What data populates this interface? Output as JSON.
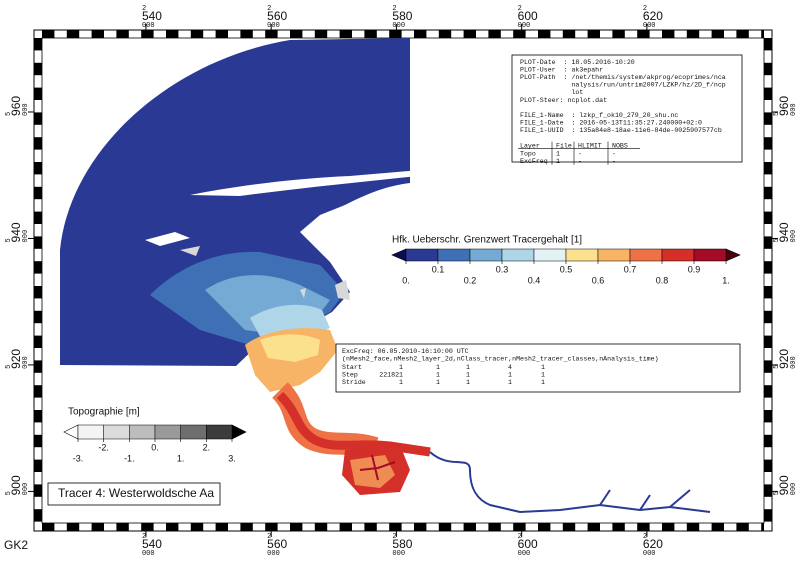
{
  "map": {
    "crs_label": "GK2",
    "x_axis": {
      "prefix": "2",
      "suffix": "000",
      "lim": [
        523.4,
        638.7
      ],
      "ticks": [
        540,
        560,
        580,
        600,
        620
      ]
    },
    "y_axis": {
      "prefix": "5",
      "suffix": "000",
      "lim": [
        895.0,
        971.7
      ],
      "ticks": [
        900,
        920,
        940,
        960
      ]
    }
  },
  "info_box": {
    "blocks": [
      [
        "PLOT-Date  : 18.05.2016-10:20",
        "PLOT-User  : ak3epahr",
        "PLOT-Path  : /net/themis/system/akprog/ecoprimes/nca",
        "             nalysis/run/untrim2007/LZKP/hz/2D_f/ncp",
        "             lot",
        "PLOT-Steer: ncplot.dat"
      ],
      [
        "FILE_1-Name  : lzkp_f_ok10_279_20_shu.nc",
        "FILE_1-Date  : 2016-05-13T11:35:27.240000+02:0",
        "FILE_1-UUID  : 135a84e8-18ae-11e6-84de-0025907577cb"
      ]
    ],
    "table": {
      "header": [
        "Layer",
        "File",
        "HLIMIT",
        "NOBS"
      ],
      "rows": [
        [
          "Topo",
          "1",
          "-",
          "-"
        ],
        [
          "ExcFreq",
          "1",
          "-",
          "-"
        ]
      ]
    }
  },
  "tracer_legend": {
    "title": "Hfk. Ueberschr. Grenzwert Tracergehalt [1]",
    "lim": [
      0,
      1
    ],
    "ticks": [
      {
        "value": 0,
        "label": "0."
      },
      0.1,
      0.2,
      0.3,
      0.4,
      0.5,
      0.6,
      0.7,
      0.8,
      0.9,
      {
        "value": 1,
        "label": "1."
      }
    ],
    "under_color": "#0c0c52",
    "over_color": "#4a0010",
    "colors": [
      "#2a3a94",
      "#3f70b6",
      "#74aad3",
      "#aed5e8",
      "#e3f2f4",
      "#fbe08e",
      "#f8b466",
      "#ee7245",
      "#d52f2a",
      "#a30b27"
    ]
  },
  "exceedance_box": {
    "lines": [
      "ExcFreq: 06.05.2010-16:10:00 UTC",
      "(nMesh2_face,nMesh2_layer_2d,nClass_tracer,nMesh2_tracer_classes,nAnalysis_time)"
    ],
    "rows": [
      [
        "Start",
        1,
        1,
        1,
        4,
        1
      ],
      [
        "Step",
        221821,
        1,
        1,
        1,
        1
      ],
      [
        "Stride",
        1,
        1,
        1,
        1,
        1
      ]
    ]
  },
  "topo_legend": {
    "title": "Topographie [m]",
    "lim": [
      -3,
      3
    ],
    "ticks": [
      {
        "value": -3,
        "label": "-3."
      },
      {
        "value": -2,
        "label": "-2."
      },
      {
        "value": -1,
        "label": "-1."
      },
      {
        "value": 0,
        "label": "0."
      },
      {
        "value": 1,
        "label": "1."
      },
      {
        "value": 2,
        "label": "2."
      },
      {
        "value": 3,
        "label": "3."
      }
    ],
    "under_color": "#ffffff",
    "over_color": "#000000",
    "colors": [
      "#f4f4f4",
      "#dcdcdc",
      "#bdbdbd",
      "#9a9a9a",
      "#6e6e6e",
      "#3c3c3c"
    ]
  },
  "caption": "Tracer 4: Westerwoldsche Aa"
}
